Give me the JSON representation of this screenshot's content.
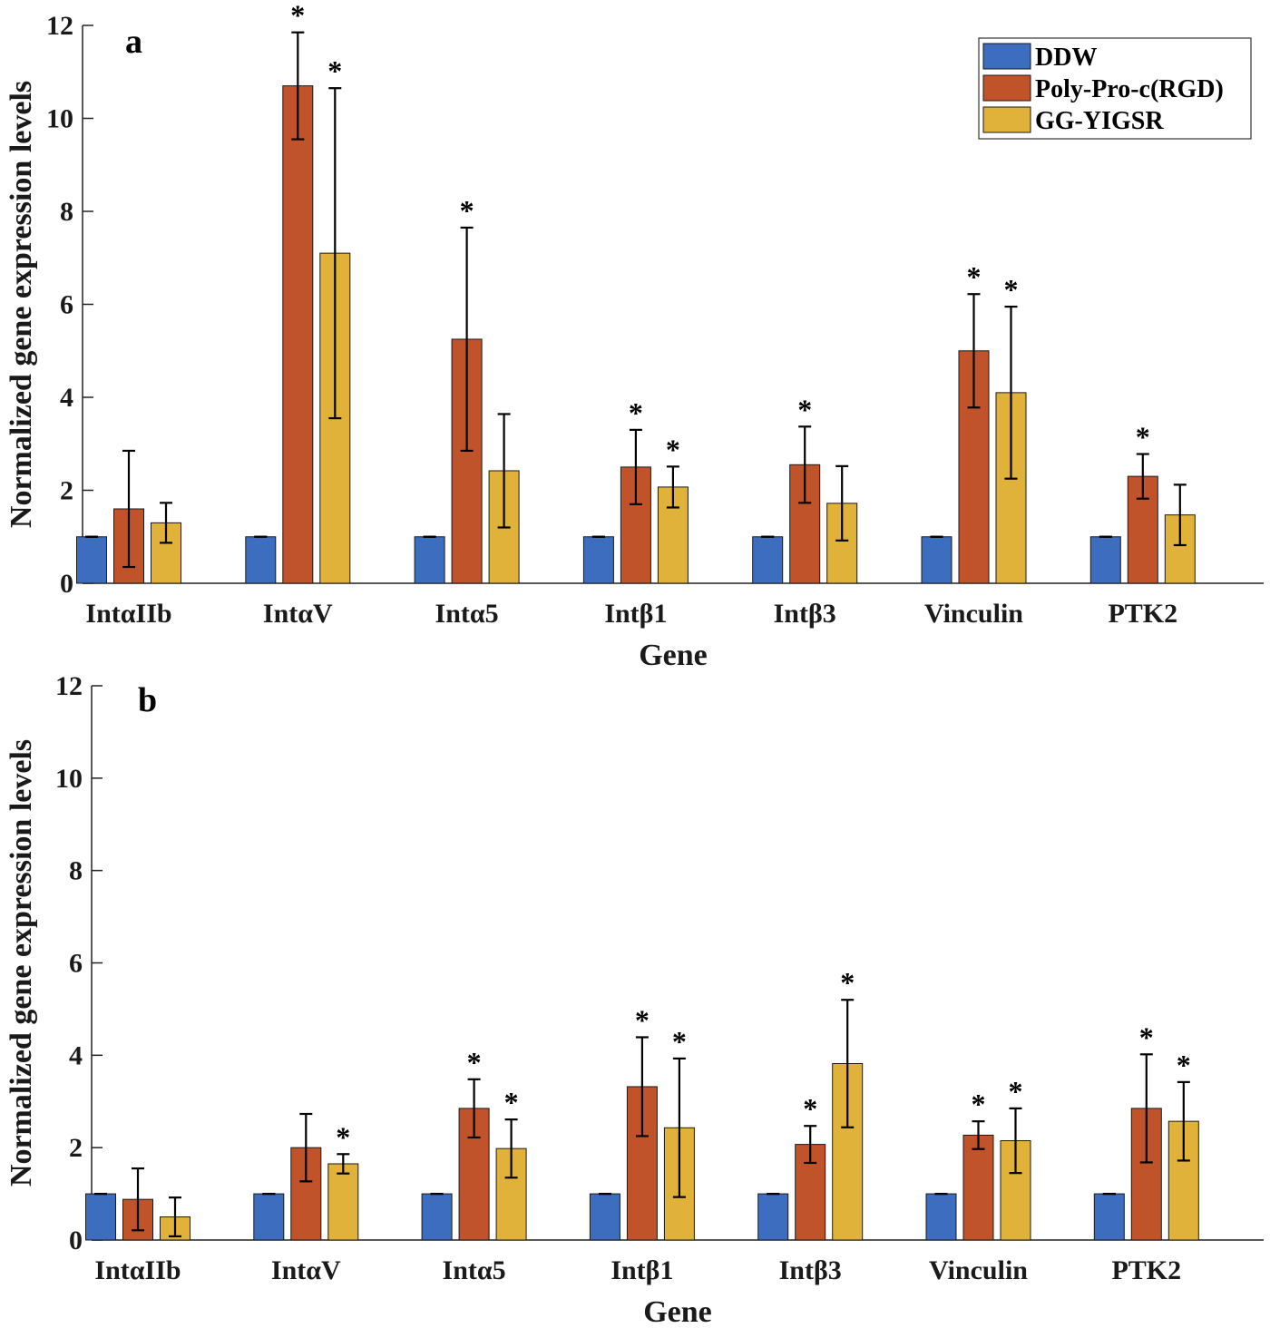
{
  "colors": {
    "DDW": "#3d6dbf",
    "Poly-Pro-c(RGD)": "#c1532a",
    "GG-YIGSR": "#e0b23a"
  },
  "chart_data": [
    {
      "type": "bar",
      "panel_label": "a",
      "xlabel": "Gene",
      "ylabel": "Normalized gene expression levels",
      "ylim": [
        0,
        12
      ],
      "yticks": [
        0,
        2,
        4,
        6,
        8,
        10,
        12
      ],
      "categories": [
        "IntαIIb",
        "IntαV",
        "Intα5",
        "Intβ1",
        "Intβ3",
        "Vinculin",
        "PTK2"
      ],
      "legend": {
        "position": "top-right",
        "entries": [
          "DDW",
          "Poly-Pro-c(RGD)",
          "GG-YIGSR"
        ]
      },
      "series": [
        {
          "name": "DDW",
          "values": [
            1,
            1,
            1,
            1,
            1,
            1,
            1
          ],
          "errors": [
            0,
            0,
            0,
            0,
            0,
            0,
            0
          ],
          "significant": [
            false,
            false,
            false,
            false,
            false,
            false,
            false
          ]
        },
        {
          "name": "Poly-Pro-c(RGD)",
          "values": [
            1.6,
            10.7,
            5.25,
            2.5,
            2.55,
            5.0,
            2.3
          ],
          "errors": [
            1.25,
            1.15,
            2.4,
            0.8,
            0.82,
            1.22,
            0.48
          ],
          "significant": [
            false,
            true,
            true,
            true,
            true,
            true,
            true
          ]
        },
        {
          "name": "GG-YIGSR",
          "values": [
            1.3,
            7.1,
            2.42,
            2.07,
            1.72,
            4.1,
            1.47
          ],
          "errors": [
            0.43,
            3.55,
            1.22,
            0.44,
            0.8,
            1.85,
            0.65
          ],
          "significant": [
            false,
            true,
            false,
            true,
            false,
            true,
            false
          ]
        }
      ]
    },
    {
      "type": "bar",
      "panel_label": "b",
      "xlabel": "Gene",
      "ylabel": "Normalized gene expression levels",
      "ylim": [
        0,
        12
      ],
      "yticks": [
        0,
        2,
        4,
        6,
        8,
        10,
        12
      ],
      "categories": [
        "IntαIIb",
        "IntαV",
        "Intα5",
        "Intβ1",
        "Intβ3",
        "Vinculin",
        "PTK2"
      ],
      "series": [
        {
          "name": "DDW",
          "values": [
            1,
            1,
            1,
            1,
            1,
            1,
            1
          ],
          "errors": [
            0,
            0,
            0,
            0,
            0,
            0,
            0
          ],
          "significant": [
            false,
            false,
            false,
            false,
            false,
            false,
            false
          ]
        },
        {
          "name": "Poly-Pro-c(RGD)",
          "values": [
            0.88,
            2.0,
            2.85,
            3.32,
            2.07,
            2.27,
            2.85
          ],
          "errors": [
            0.67,
            0.73,
            0.63,
            1.07,
            0.4,
            0.3,
            1.17
          ],
          "significant": [
            false,
            false,
            true,
            true,
            true,
            true,
            true
          ]
        },
        {
          "name": "GG-YIGSR",
          "values": [
            0.5,
            1.65,
            1.98,
            2.43,
            3.82,
            2.15,
            2.57
          ],
          "errors": [
            0.42,
            0.21,
            0.63,
            1.5,
            1.38,
            0.7,
            0.85
          ],
          "significant": [
            false,
            true,
            true,
            true,
            true,
            true,
            true
          ]
        }
      ]
    }
  ]
}
